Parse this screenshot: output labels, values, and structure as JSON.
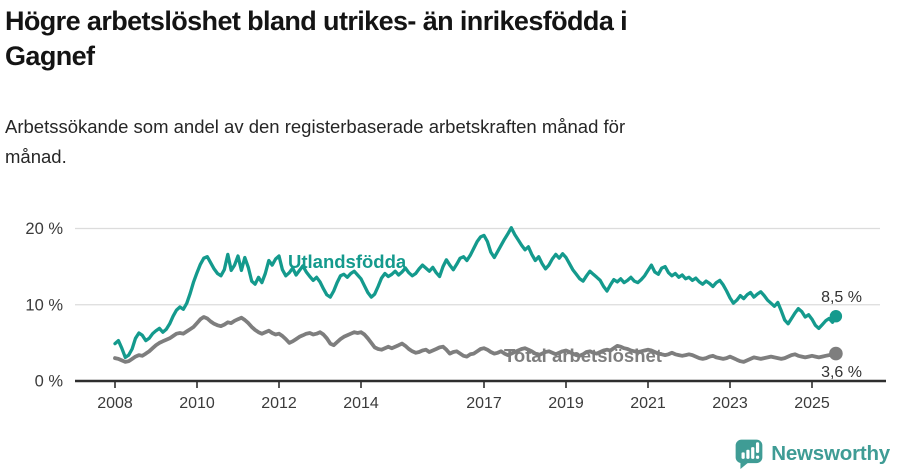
{
  "header": {
    "title_lines": [
      "Högre arbetslöshet bland utrikes- än inrikesfödda i",
      "Gagnef"
    ],
    "subtitle_lines": [
      "Arbetssökande som andel av den registerbaserade arbetskraften månad för",
      "månad."
    ]
  },
  "chart_data": {
    "type": "line",
    "unit": "%",
    "x_start": "2008-01",
    "x_end": "2025-08",
    "frequency": "monthly",
    "ylim": [
      0,
      21
    ],
    "grid": "horizontal",
    "legend_position": "inline-labels",
    "y_ticks": [
      {
        "value": 0,
        "label": "0 %"
      },
      {
        "value": 10,
        "label": "10 %"
      },
      {
        "value": 20,
        "label": "20 %"
      }
    ],
    "x_ticks": [
      "2008",
      "2010",
      "2012",
      "2014",
      "2017",
      "2019",
      "2021",
      "2023",
      "2025"
    ],
    "series": [
      {
        "name": "Utlandsfödda",
        "color": "#149a8d",
        "end_value": 8.5,
        "end_label": "8,5 %",
        "values": [
          4.9,
          5.3,
          4.3,
          3.1,
          3.4,
          4.2,
          5.6,
          6.3,
          6.0,
          5.3,
          5.6,
          6.2,
          6.6,
          6.9,
          6.4,
          6.8,
          7.5,
          8.5,
          9.3,
          9.7,
          9.4,
          10.2,
          11.5,
          13.0,
          14.2,
          15.3,
          16.1,
          16.3,
          15.5,
          14.7,
          14.1,
          13.8,
          14.6,
          16.6,
          14.5,
          15.2,
          16.4,
          14.5,
          16.2,
          14.9,
          13.1,
          12.7,
          13.6,
          12.9,
          14.1,
          15.8,
          15.2,
          16.0,
          16.4,
          14.6,
          13.8,
          14.2,
          14.8,
          13.9,
          14.5,
          15.1,
          14.3,
          13.7,
          13.2,
          13.6,
          13.0,
          12.1,
          11.3,
          11.0,
          11.8,
          12.9,
          13.8,
          14.0,
          13.6,
          14.1,
          14.4,
          13.9,
          13.4,
          12.5,
          11.6,
          11.0,
          11.4,
          12.4,
          13.5,
          14.1,
          13.7,
          14.0,
          14.4,
          13.9,
          14.3,
          14.8,
          14.2,
          13.8,
          14.1,
          14.7,
          15.2,
          14.8,
          14.4,
          14.9,
          14.2,
          13.7,
          15.0,
          15.9,
          15.2,
          14.6,
          15.3,
          16.1,
          16.3,
          15.8,
          16.5,
          17.4,
          18.3,
          18.9,
          19.1,
          18.3,
          16.9,
          16.2,
          17.0,
          17.8,
          18.6,
          19.3,
          20.1,
          19.2,
          18.5,
          17.8,
          17.2,
          17.6,
          16.6,
          15.8,
          16.3,
          15.4,
          14.7,
          15.2,
          16.0,
          16.6,
          16.1,
          16.7,
          16.2,
          15.4,
          14.6,
          14.0,
          13.4,
          13.1,
          13.8,
          14.4,
          14.0,
          13.6,
          13.2,
          12.4,
          11.8,
          12.6,
          13.3,
          13.0,
          13.4,
          12.9,
          13.2,
          13.6,
          13.1,
          12.9,
          13.3,
          13.8,
          14.5,
          15.2,
          14.3,
          14.0,
          14.8,
          15.0,
          14.2,
          13.8,
          14.1,
          13.6,
          13.9,
          13.4,
          13.6,
          13.2,
          13.5,
          13.0,
          12.7,
          13.1,
          12.8,
          12.4,
          12.9,
          13.2,
          12.6,
          11.8,
          10.9,
          10.2,
          10.6,
          11.2,
          10.8,
          11.3,
          11.6,
          11.0,
          11.4,
          11.7,
          11.2,
          10.6,
          10.2,
          9.8,
          10.3,
          9.2,
          8.0,
          7.5,
          8.2,
          8.9,
          9.5,
          9.1,
          8.4,
          8.7,
          8.1,
          7.3,
          6.9,
          7.4,
          7.9,
          8.2,
          7.7,
          8.5
        ]
      },
      {
        "name": "Total arbetslöshet",
        "color": "#7e7e7e",
        "end_value": 3.6,
        "end_label": "3,6 %",
        "values": [
          3.0,
          2.9,
          2.7,
          2.5,
          2.6,
          2.9,
          3.2,
          3.4,
          3.3,
          3.6,
          3.9,
          4.3,
          4.7,
          5.0,
          5.2,
          5.4,
          5.6,
          5.9,
          6.2,
          6.3,
          6.2,
          6.5,
          6.8,
          7.1,
          7.6,
          8.1,
          8.4,
          8.2,
          7.8,
          7.5,
          7.3,
          7.2,
          7.4,
          7.7,
          7.6,
          7.9,
          8.1,
          8.3,
          8.0,
          7.6,
          7.1,
          6.7,
          6.4,
          6.2,
          6.4,
          6.6,
          6.3,
          6.1,
          6.2,
          5.9,
          5.5,
          5.0,
          5.2,
          5.5,
          5.8,
          6.0,
          6.2,
          6.3,
          6.1,
          6.2,
          6.4,
          6.1,
          5.6,
          4.9,
          4.7,
          5.1,
          5.5,
          5.8,
          6.0,
          6.2,
          6.4,
          6.3,
          6.4,
          6.1,
          5.6,
          5.0,
          4.4,
          4.2,
          4.1,
          4.3,
          4.5,
          4.3,
          4.5,
          4.7,
          4.9,
          4.6,
          4.2,
          3.9,
          3.7,
          3.8,
          4.0,
          4.1,
          3.8,
          4.0,
          4.2,
          4.4,
          4.5,
          4.1,
          3.6,
          3.8,
          3.9,
          3.6,
          3.3,
          3.2,
          3.5,
          3.6,
          3.9,
          4.2,
          4.3,
          4.1,
          3.8,
          3.6,
          3.7,
          3.9,
          3.6,
          3.4,
          3.6,
          3.8,
          4.0,
          4.2,
          4.3,
          4.1,
          3.9,
          3.6,
          3.4,
          3.6,
          3.8,
          3.9,
          3.7,
          3.5,
          3.7,
          3.9,
          4.0,
          3.8,
          3.6,
          3.4,
          3.3,
          3.5,
          3.8,
          3.9,
          3.7,
          3.6,
          3.8,
          4.0,
          4.1,
          4.0,
          4.3,
          4.6,
          4.5,
          4.3,
          4.2,
          4.0,
          3.9,
          3.8,
          3.9,
          4.0,
          4.1,
          4.0,
          3.8,
          3.6,
          3.5,
          3.4,
          3.5,
          3.7,
          3.5,
          3.4,
          3.3,
          3.4,
          3.5,
          3.4,
          3.2,
          3.0,
          2.9,
          3.0,
          3.2,
          3.3,
          3.1,
          3.0,
          2.9,
          3.0,
          3.2,
          3.0,
          2.8,
          2.6,
          2.5,
          2.7,
          2.9,
          3.1,
          3.0,
          2.9,
          3.0,
          3.1,
          3.2,
          3.1,
          3.0,
          2.9,
          3.0,
          3.2,
          3.4,
          3.5,
          3.3,
          3.2,
          3.1,
          3.2,
          3.3,
          3.2,
          3.1,
          3.2,
          3.3,
          3.4,
          3.5,
          3.6
        ]
      }
    ]
  },
  "footer": {
    "brand": "Newsworthy",
    "brand_color": "#3f9c95"
  }
}
